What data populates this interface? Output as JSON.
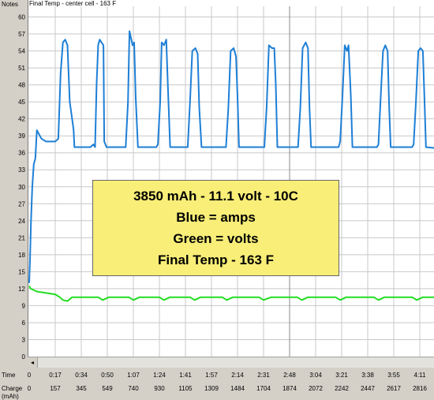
{
  "labels": {
    "notes": "Notes",
    "time_row": "Time",
    "charge_row": "Charge",
    "charge_unit": "(mAh)",
    "scroll_left": "◂"
  },
  "chart_data": {
    "type": "line",
    "title": "Final Temp - center cell  - 163 F",
    "ylim": [
      0,
      63
    ],
    "y_ticks": [
      0,
      3,
      6,
      9,
      12,
      15,
      18,
      21,
      24,
      27,
      30,
      33,
      36,
      39,
      42,
      45,
      48,
      51,
      54,
      57,
      60
    ],
    "time_ticks": [
      "0",
      "0:17",
      "0:34",
      "0:50",
      "1:07",
      "1:24",
      "1:41",
      "1:57",
      "2:14",
      "2:31",
      "2:48",
      "3:04",
      "3:21",
      "3:38",
      "3:55",
      "4:11",
      "4:28"
    ],
    "charge_ticks": [
      "0",
      "157",
      "345",
      "549",
      "740",
      "930",
      "1105",
      "1309",
      "1484",
      "1704",
      "1874",
      "2072",
      "2242",
      "2447",
      "2617",
      "2816",
      "2990"
    ],
    "grid": true,
    "annotation_lines": [
      "3850 mAh - 11.1 volt - 10C",
      "Blue = amps",
      "Green = volts",
      "Final Temp - 163 F"
    ],
    "series": [
      {
        "color": "#1e7fd6",
        "x": [
          0,
          0.5,
          1.2,
          2.0,
          3.0,
          4.0,
          5.0,
          8.0,
          11.0,
          17.0,
          19.0,
          20.5,
          22.0,
          23.5,
          25.0,
          26.5,
          28.0,
          29.0,
          29.5,
          31.0,
          36.0,
          40.0,
          42.0,
          43.0,
          44.0,
          45.0,
          46.0,
          48.5,
          49.0,
          50.5,
          62.0,
          63.0,
          64.5,
          65.5,
          67.5,
          68.5,
          69.5,
          71.0,
          83.0,
          84.0,
          85.5,
          86.5,
          88.0,
          89.5,
          90.5,
          92.0,
          102.0,
          103.5,
          105.0,
          106.5,
          108.5,
          110.0,
          111.0,
          112.5,
          127.0,
          128.5,
          130.0,
          131.5,
          133.5,
          135.0,
          136.0,
          137.0,
          152.0,
          153.5,
          155.0,
          156.5,
          158.5,
          160.0,
          161.0,
          162.0,
          174.0,
          175.5,
          177.0,
          178.5,
          180.5,
          182.0,
          183.0,
          184.0,
          202.0,
          203.0,
          204.5,
          206.0,
          207.5,
          208.5,
          210.0,
          211.0,
          227.0,
          228.0,
          229.5,
          231.0,
          232.5,
          234.0,
          235.0,
          236.0,
          250.0,
          251.0,
          252.5,
          254.0,
          255.5,
          257.0,
          258.0,
          259.0,
          277.0,
          280.0
        ],
        "y": [
          13.0,
          17.0,
          24.0,
          30.0,
          34.0,
          35.0,
          40.0,
          38.5,
          38.0,
          38.0,
          38.5,
          50.0,
          55.5,
          56.0,
          55.0,
          45.0,
          42.0,
          40.0,
          37.0,
          37.0,
          37.0,
          37.0,
          37.5,
          37.0,
          48.0,
          55.0,
          56.0,
          55.0,
          38.0,
          37.0,
          37.0,
          37.0,
          45.0,
          57.5,
          55.0,
          55.5,
          46.0,
          37.0,
          37.0,
          37.5,
          45.0,
          55.5,
          55.0,
          56.0,
          48.0,
          37.0,
          37.0,
          37.0,
          45.0,
          54.0,
          54.5,
          53.5,
          44.0,
          37.0,
          37.0,
          37.0,
          44.0,
          54.0,
          54.5,
          53.0,
          46.0,
          37.0,
          37.0,
          37.0,
          44.0,
          55.0,
          54.5,
          54.5,
          48.0,
          37.0,
          37.0,
          37.0,
          44.0,
          54.5,
          55.5,
          54.5,
          44.0,
          37.0,
          37.0,
          38.0,
          46.0,
          55.0,
          54.0,
          55.0,
          46.0,
          37.0,
          37.0,
          37.5,
          46.0,
          54.0,
          55.0,
          54.0,
          44.0,
          37.0,
          37.0,
          37.5,
          45.0,
          54.0,
          54.5,
          54.0,
          46.0,
          37.0,
          36.5,
          36.5
        ]
      },
      {
        "color": "#22dd22",
        "x": [
          0,
          1.0,
          5.0,
          17.0,
          20.0,
          22.0,
          25.0,
          28.0,
          45.0,
          48.0,
          52.0,
          65.0,
          68.0,
          72.0,
          85.0,
          88.0,
          92.0,
          105.0,
          108.0,
          112.0,
          126.0,
          129.0,
          133.0,
          150.0,
          153.0,
          158.0,
          175.0,
          178.0,
          182.0,
          200.0,
          203.0,
          207.0,
          225.0,
          228.0,
          232.0,
          250.0,
          253.0,
          257.0,
          280.0
        ],
        "y": [
          12.5,
          12.0,
          11.5,
          11.0,
          10.5,
          10.0,
          9.8,
          10.5,
          10.5,
          10.0,
          10.5,
          10.5,
          10.0,
          10.5,
          10.5,
          10.0,
          10.5,
          10.5,
          10.0,
          10.5,
          10.5,
          10.0,
          10.5,
          10.5,
          10.0,
          10.5,
          10.5,
          10.0,
          10.5,
          10.5,
          10.0,
          10.5,
          10.5,
          10.0,
          10.5,
          10.5,
          10.0,
          10.5,
          10.5
        ]
      }
    ]
  }
}
